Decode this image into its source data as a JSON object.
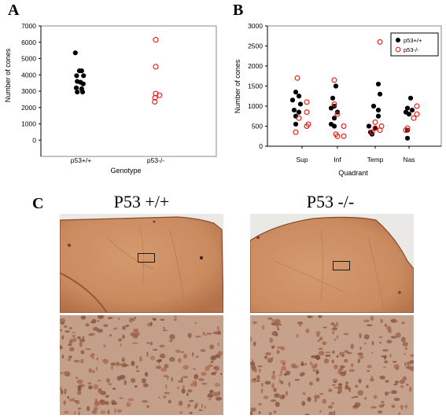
{
  "figure": {
    "panel_labels": [
      "A",
      "B",
      "C"
    ],
    "photo_titles": [
      "P53 +/+",
      "P53 -/-"
    ],
    "colors": {
      "wildtype": "#000000",
      "knockout": "#e8221b",
      "tissue": "#c98a5e"
    }
  },
  "chart_data": [
    {
      "type": "scatter",
      "xlabel": "Genotype",
      "ylabel": "Number of cones",
      "ylim": [
        -1000,
        7000
      ],
      "yticks": [
        0,
        1000,
        2000,
        3000,
        4000,
        5000,
        6000,
        7000
      ],
      "categories": [
        "p53+/+",
        "p53-/-"
      ],
      "series": [
        {
          "category": "p53+/+",
          "marker": "filled",
          "color": "#000000",
          "points": [
            [
              -0.18,
              5350
            ],
            [
              -0.05,
              4250
            ],
            [
              0.02,
              4250
            ],
            [
              -0.14,
              3950
            ],
            [
              0.08,
              3950
            ],
            [
              -0.12,
              3600
            ],
            [
              -0.02,
              3550
            ],
            [
              0.07,
              3450
            ],
            [
              -0.15,
              3200
            ],
            [
              0.02,
              3150
            ],
            [
              -0.12,
              2950
            ],
            [
              0.05,
              2950
            ]
          ]
        },
        {
          "category": "p53-/-",
          "marker": "open",
          "color": "#e8221b",
          "points": [
            [
              0.0,
              6150
            ],
            [
              0.0,
              4500
            ],
            [
              0.0,
              2850
            ],
            [
              0.12,
              2750
            ],
            [
              -0.02,
              2600
            ],
            [
              -0.03,
              2350
            ]
          ]
        }
      ]
    },
    {
      "type": "scatter",
      "xlabel": "Quadrant",
      "ylabel": "Number of cones",
      "ylim": [
        0,
        3000
      ],
      "yticks": [
        0,
        500,
        1000,
        1500,
        2000,
        2500,
        3000
      ],
      "categories": [
        "Sup",
        "Inf",
        "Temp",
        "Nas"
      ],
      "legend": {
        "position": "top-right",
        "entries": [
          "p53+/+",
          "p53-/-"
        ]
      },
      "series": [
        {
          "name": "p53+/+",
          "marker": "filled",
          "color": "#000000",
          "points": [
            [
              "Sup",
              -0.2,
              1350
            ],
            [
              "Sup",
              -0.1,
              1250
            ],
            [
              "Sup",
              -0.3,
              1150
            ],
            [
              "Sup",
              -0.05,
              1050
            ],
            [
              "Sup",
              -0.25,
              900
            ],
            [
              "Sup",
              -0.1,
              850
            ],
            [
              "Sup",
              -0.2,
              750
            ],
            [
              "Sup",
              -0.2,
              550
            ],
            [
              "Inf",
              -0.05,
              1500
            ],
            [
              "Inf",
              -0.15,
              1200
            ],
            [
              "Inf",
              -0.1,
              1000
            ],
            [
              "Inf",
              -0.2,
              950
            ],
            [
              "Inf",
              0.0,
              850
            ],
            [
              "Inf",
              -0.1,
              700
            ],
            [
              "Inf",
              -0.2,
              550
            ],
            [
              "Inf",
              -0.1,
              500
            ],
            [
              "Temp",
              0.1,
              1550
            ],
            [
              "Temp",
              0.15,
              1300
            ],
            [
              "Temp",
              -0.05,
              1000
            ],
            [
              "Temp",
              0.1,
              900
            ],
            [
              "Temp",
              0.1,
              750
            ],
            [
              "Temp",
              -0.2,
              500
            ],
            [
              "Temp",
              0.0,
              450
            ],
            [
              "Temp",
              -0.15,
              350
            ],
            [
              "Temp",
              -0.1,
              300
            ],
            [
              "Nas",
              0.05,
              1200
            ],
            [
              "Nas",
              -0.05,
              950
            ],
            [
              "Nas",
              0.1,
              900
            ],
            [
              "Nas",
              -0.1,
              850
            ],
            [
              "Nas",
              0.0,
              800
            ],
            [
              "Nas",
              -0.05,
              400
            ],
            [
              "Nas",
              -0.05,
              200
            ]
          ]
        },
        {
          "name": "p53-/-",
          "marker": "open",
          "color": "#e8221b",
          "points": [
            [
              "Sup",
              -0.15,
              1700
            ],
            [
              "Sup",
              0.15,
              1100
            ],
            [
              "Sup",
              0.15,
              850
            ],
            [
              "Sup",
              -0.1,
              700
            ],
            [
              "Sup",
              0.2,
              550
            ],
            [
              "Sup",
              0.15,
              500
            ],
            [
              "Sup",
              -0.2,
              350
            ],
            [
              "Inf",
              -0.1,
              1650
            ],
            [
              "Inf",
              -0.1,
              1050
            ],
            [
              "Inf",
              0.0,
              800
            ],
            [
              "Inf",
              0.2,
              500
            ],
            [
              "Inf",
              -0.05,
              300
            ],
            [
              "Inf",
              0.2,
              250
            ],
            [
              "Inf",
              0.0,
              250
            ],
            [
              "Temp",
              0.15,
              2600
            ],
            [
              "Temp",
              0.0,
              600
            ],
            [
              "Temp",
              0.2,
              500
            ],
            [
              "Temp",
              0.0,
              450
            ],
            [
              "Temp",
              0.15,
              400
            ],
            [
              "Temp",
              -0.1,
              350
            ],
            [
              "Nas",
              0.25,
              1000
            ],
            [
              "Nas",
              0.25,
              800
            ],
            [
              "Nas",
              0.15,
              700
            ],
            [
              "Nas",
              -0.05,
              450
            ],
            [
              "Nas",
              -0.1,
              400
            ]
          ]
        }
      ]
    }
  ]
}
